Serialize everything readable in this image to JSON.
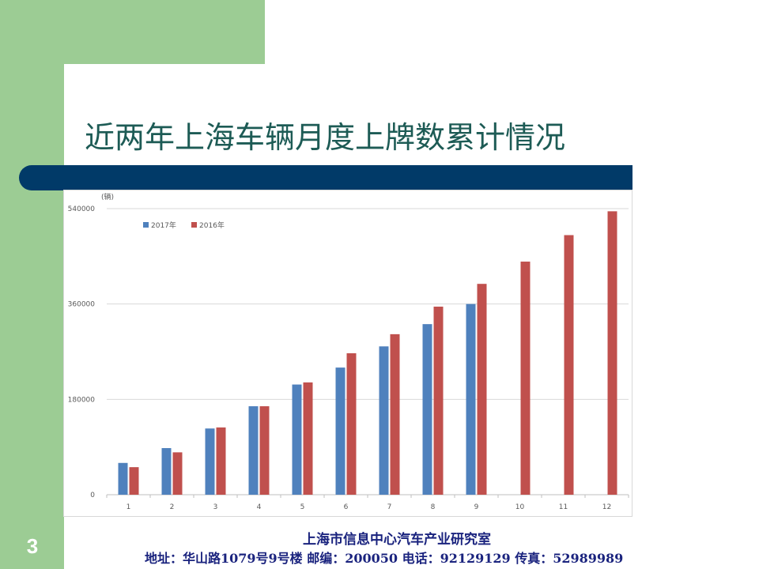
{
  "slide": {
    "title": "近两年上海车辆月度上牌数累计情况",
    "page_number": "3",
    "footer_org": "上海市信息中心汽车产业研究室",
    "footer_contact": "地址：华山路1079号9号楼   邮编：200050  电话：92129129  传真：52989989"
  },
  "colors": {
    "green": "#9ccc94",
    "navy_bar": "#013a68",
    "title_text": "#1d5b55",
    "footer_text": "#1a237e"
  },
  "chart_data": {
    "type": "bar",
    "title": "",
    "ylabel": "(辆)",
    "xlabel": "",
    "categories": [
      "1",
      "2",
      "3",
      "4",
      "5",
      "6",
      "7",
      "8",
      "9",
      "10",
      "11",
      "12"
    ],
    "series": [
      {
        "name": "2017年",
        "color": "#4f81bd",
        "values": [
          60000,
          88000,
          125000,
          167000,
          208000,
          240000,
          280000,
          322000,
          360000,
          null,
          null,
          null
        ]
      },
      {
        "name": "2016年",
        "color": "#c0504d",
        "values": [
          52000,
          80000,
          127000,
          167000,
          212000,
          267000,
          303000,
          355000,
          398000,
          440000,
          490000,
          535000
        ]
      }
    ],
    "ylim": [
      0,
      540000
    ],
    "yticks": [
      "0",
      "180000",
      "360000",
      "540000"
    ],
    "ytick_values": [
      0,
      180000,
      360000,
      540000
    ],
    "grid": true,
    "legend": "top-left"
  }
}
